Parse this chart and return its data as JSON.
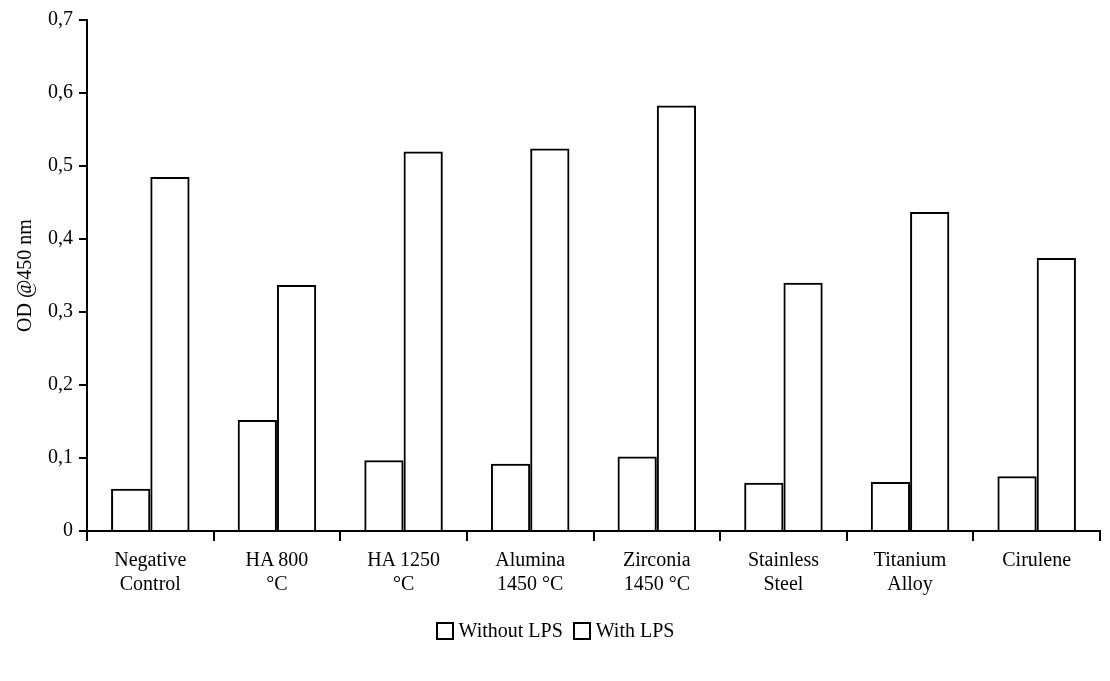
{
  "chart_data": {
    "type": "bar",
    "ylabel": "OD @450 nm",
    "categories": [
      "Negative Control",
      "HA 800 °C",
      "HA 1250 °C",
      "Alumina 1450 °C",
      "Zirconia 1450 °C",
      "Stainless Steel",
      "Titanium Alloy",
      "Cirulene"
    ],
    "series": [
      {
        "name": "Without LPS",
        "color": "#000000",
        "values": [
          0.058,
          0.152,
          0.097,
          0.092,
          0.102,
          0.066,
          0.067,
          0.075
        ]
      },
      {
        "name": "With LPS",
        "color": "#000000",
        "values": [
          0.485,
          0.337,
          0.52,
          0.524,
          0.583,
          0.34,
          0.437,
          0.374
        ]
      }
    ],
    "ylim": [
      0,
      0.7
    ],
    "yticks": [
      {
        "value": 0,
        "label": "0"
      },
      {
        "value": 0.1,
        "label": "0,1"
      },
      {
        "value": 0.2,
        "label": "0,2"
      },
      {
        "value": 0.3,
        "label": "0,3"
      },
      {
        "value": 0.4,
        "label": "0,4"
      },
      {
        "value": 0.5,
        "label": "0,5"
      },
      {
        "value": 0.6,
        "label": "0,6"
      },
      {
        "value": 0.7,
        "label": "0,7"
      }
    ],
    "grid": false,
    "legend": "bottom"
  }
}
